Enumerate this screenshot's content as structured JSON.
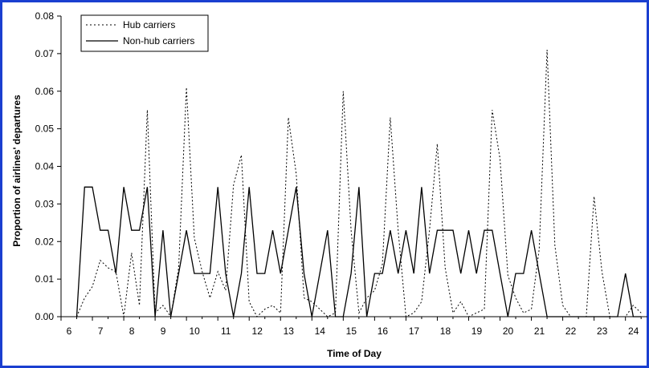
{
  "colors": {
    "frame": "#1a3fd0",
    "series": "#000000"
  },
  "chart_data": {
    "type": "line",
    "title": "",
    "xlabel": "Time of Day",
    "ylabel": "Proportion of airlines' departures",
    "xlim": [
      6,
      24.7
    ],
    "ylim": [
      0,
      0.08
    ],
    "xticks": [
      "6",
      "7",
      "8",
      "9",
      "10",
      "11",
      "12",
      "13",
      "14",
      "15",
      "16",
      "17",
      "18",
      "19",
      "20",
      "21",
      "22",
      "23",
      "24"
    ],
    "yticks": [
      "0.00",
      "0.01",
      "0.02",
      "0.03",
      "0.04",
      "0.05",
      "0.06",
      "0.07",
      "0.08"
    ],
    "grid": false,
    "legend_position": "top-left",
    "series": [
      {
        "name": "Hub carriers",
        "style": "dotted",
        "x": [
          6.5,
          6.75,
          7,
          7.25,
          7.5,
          7.75,
          8,
          8.25,
          8.5,
          8.75,
          9,
          9.25,
          9.5,
          9.75,
          10,
          10.25,
          10.5,
          10.75,
          11,
          11.25,
          11.5,
          11.75,
          12,
          12.25,
          12.5,
          12.75,
          13,
          13.25,
          13.5,
          13.75,
          14,
          14.25,
          14.5,
          14.75,
          15,
          15.25,
          15.5,
          15.75,
          16,
          16.25,
          16.5,
          16.75,
          17,
          17.25,
          17.5,
          17.75,
          18,
          18.25,
          18.5,
          18.75,
          19,
          19.25,
          19.5,
          19.75,
          20,
          20.25,
          20.5,
          20.75,
          21,
          21.25,
          21.5,
          21.75,
          22,
          22.25,
          22.5,
          22.75,
          23,
          23.25,
          23.5,
          23.75,
          24,
          24.25,
          24.5
        ],
        "y": [
          0,
          0.005,
          0.008,
          0.015,
          0.013,
          0.012,
          0,
          0.017,
          0.003,
          0.055,
          0.001,
          0.003,
          0,
          0.013,
          0.061,
          0.021,
          0.012,
          0.005,
          0.012,
          0.007,
          0.035,
          0.043,
          0.004,
          0,
          0.002,
          0.003,
          0.001,
          0.053,
          0.038,
          0.005,
          0.004,
          0.002,
          0,
          0.001,
          0.06,
          0.023,
          0.001,
          0.005,
          0.007,
          0.014,
          0.053,
          0.023,
          0,
          0.001,
          0.004,
          0.023,
          0.046,
          0.013,
          0.001,
          0.004,
          0,
          0.001,
          0.002,
          0.055,
          0.042,
          0.011,
          0.005,
          0.001,
          0.002,
          0.018,
          0.071,
          0.019,
          0.003,
          0,
          0,
          0,
          0.032,
          0.012,
          0,
          0,
          0,
          0.003,
          0.001
        ]
      },
      {
        "name": "Non-hub carriers",
        "style": "solid",
        "x": [
          6.5,
          6.75,
          7,
          7.25,
          7.5,
          7.75,
          8,
          8.25,
          8.5,
          8.75,
          9,
          9.25,
          9.5,
          9.75,
          10,
          10.25,
          10.5,
          10.75,
          11,
          11.25,
          11.5,
          11.75,
          12,
          12.25,
          12.5,
          12.75,
          13,
          13.25,
          13.5,
          13.75,
          14,
          14.25,
          14.5,
          14.75,
          15,
          15.25,
          15.5,
          15.75,
          16,
          16.25,
          16.5,
          16.75,
          17,
          17.25,
          17.5,
          17.75,
          18,
          18.25,
          18.5,
          18.75,
          19,
          19.25,
          19.5,
          19.75,
          20,
          20.25,
          20.5,
          20.75,
          21,
          21.25,
          21.5,
          21.75,
          22,
          22.25,
          22.5,
          22.75,
          23,
          23.25,
          23.5,
          23.75,
          24,
          24.25,
          24.5
        ],
        "y": [
          0,
          0.0345,
          0.0345,
          0.023,
          0.023,
          0.0115,
          0.0345,
          0.023,
          0.023,
          0.0345,
          0,
          0.023,
          0,
          0.0115,
          0.023,
          0.0115,
          0.0115,
          0.0115,
          0.0345,
          0.0115,
          0,
          0.0115,
          0.0345,
          0.0115,
          0.0115,
          0.023,
          0.0115,
          0.023,
          0.0345,
          0.0115,
          0,
          0.0115,
          0.023,
          0,
          0,
          0.0115,
          0.0345,
          0,
          0.0115,
          0.0115,
          0.023,
          0.0115,
          0.023,
          0.0115,
          0.0345,
          0.0115,
          0.023,
          0.023,
          0.023,
          0.0115,
          0.023,
          0.0115,
          0.023,
          0.023,
          0.0115,
          0,
          0.0115,
          0.0115,
          0.023,
          0.0115,
          0,
          0,
          0,
          0,
          0,
          0,
          0,
          0,
          0,
          0,
          0.0115,
          0,
          0
        ]
      }
    ]
  }
}
